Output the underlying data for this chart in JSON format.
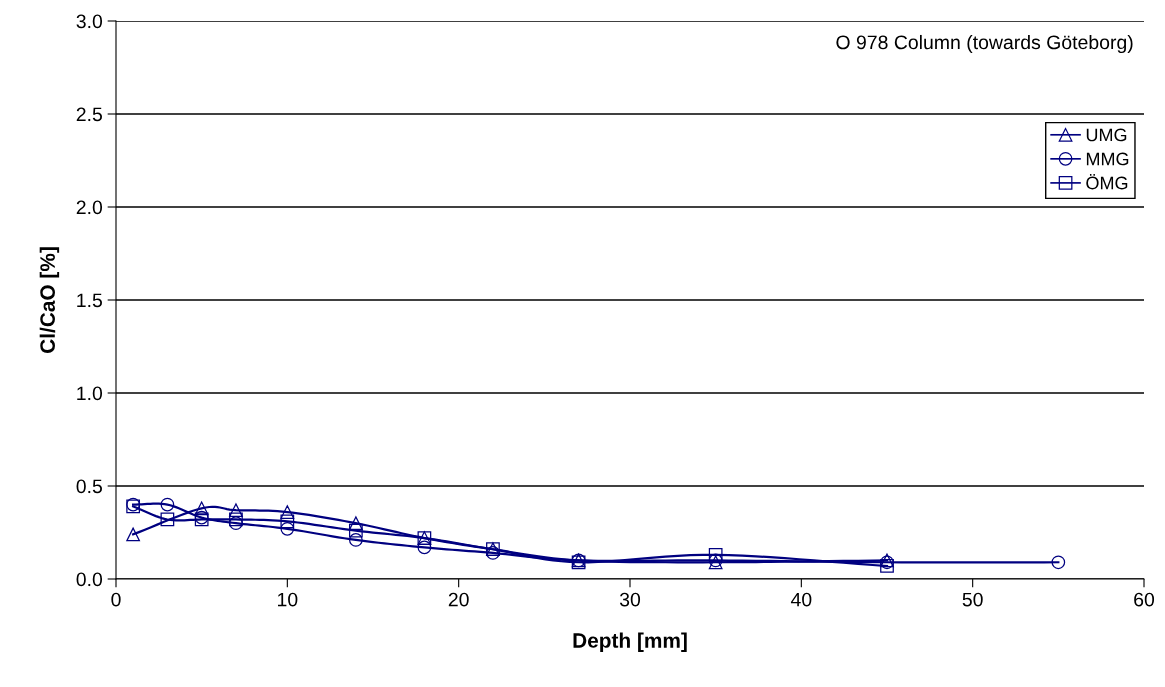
{
  "chart_data": {
    "type": "line",
    "xlabel": "Depth [mm]",
    "ylabel": "Cl/CaO [%]",
    "annotations": [
      "O 978 Column (towards Göteborg)"
    ],
    "xlim": [
      0,
      60
    ],
    "xticks": [
      0,
      10,
      20,
      30,
      40,
      50,
      60
    ],
    "ylim": [
      0,
      3
    ],
    "yticks": [
      {
        "value": 0,
        "label": "0.0"
      },
      0.5,
      {
        "value": 1,
        "label": "1.0"
      },
      1.5,
      {
        "value": 2,
        "label": "2.0"
      },
      2.5,
      {
        "value": 3,
        "label": "3.0"
      }
    ],
    "grid": "y",
    "legend": "right",
    "series": [
      {
        "name": "UMG",
        "color": "#000080",
        "marker": "triangle",
        "x": [
          1,
          5,
          7,
          10,
          14,
          18,
          22,
          27,
          35,
          45
        ],
        "values": [
          0.24,
          0.38,
          0.37,
          0.36,
          0.3,
          0.22,
          0.16,
          0.1,
          0.09,
          0.1
        ]
      },
      {
        "name": "MMG",
        "color": "#000080",
        "marker": "circle",
        "x": [
          1,
          3,
          5,
          7,
          10,
          14,
          18,
          22,
          27,
          35,
          45,
          55
        ],
        "values": [
          0.4,
          0.4,
          0.33,
          0.3,
          0.27,
          0.21,
          0.17,
          0.14,
          0.1,
          0.1,
          0.09,
          0.09
        ]
      },
      {
        "name": "ÖMG",
        "color": "#000080",
        "marker": "square",
        "x": [
          1,
          3,
          5,
          7,
          10,
          14,
          18,
          22,
          27,
          35,
          45
        ],
        "values": [
          0.39,
          0.32,
          0.32,
          0.32,
          0.31,
          0.26,
          0.22,
          0.16,
          0.09,
          0.13,
          0.07
        ]
      }
    ]
  }
}
